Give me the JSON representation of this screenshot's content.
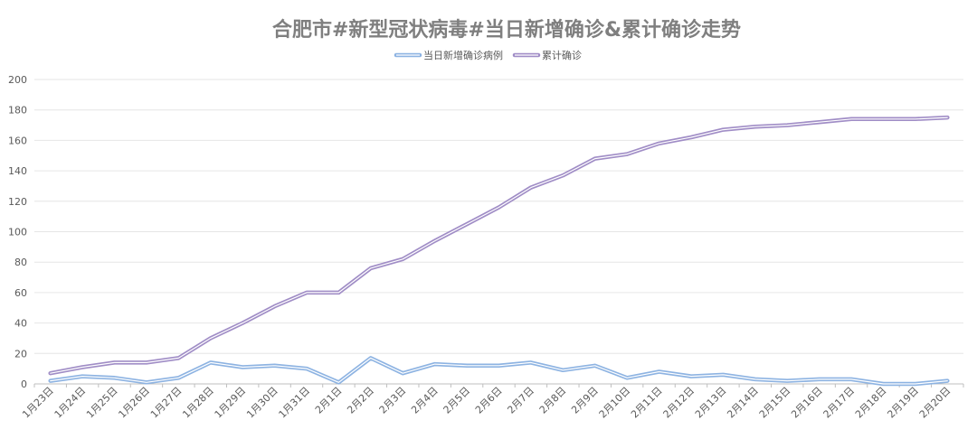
{
  "chart_data": {
    "type": "line",
    "title": "合肥市#新型冠状病毒#当日新增确诊&累计确诊走势",
    "xlabel": "",
    "ylabel": "",
    "ylim": [
      0,
      200
    ],
    "yticks": [
      0,
      20,
      40,
      60,
      80,
      100,
      120,
      140,
      160,
      180,
      200
    ],
    "ytick_labels": [
      "0",
      "20",
      "40",
      "60",
      "80",
      "100",
      "120",
      "140",
      "160",
      "180",
      "200"
    ],
    "grid": true,
    "legend_position": "top-center",
    "categories": [
      "1月23日",
      "1月24日",
      "1月25日",
      "1月26日",
      "1月27日",
      "1月28日",
      "1月29日",
      "1月30日",
      "1月31日",
      "2月1日",
      "2月2日",
      "2月3日",
      "2月4日",
      "2月5日",
      "2月6日",
      "2月7日",
      "2月8日",
      "2月9日",
      "2月10日",
      "2月11日",
      "2月12日",
      "2月13日",
      "2月14日",
      "2月15日",
      "2月16日",
      "2月17日",
      "2月18日",
      "2月19日",
      "2月20日"
    ],
    "series": [
      {
        "name": "当日新增确诊病例",
        "color": "#8db3e2",
        "values": [
          2,
          5,
          4,
          1,
          4,
          14,
          11,
          12,
          10,
          1,
          17,
          7,
          13,
          12,
          12,
          14,
          9,
          12,
          4,
          8,
          5,
          6,
          3,
          2,
          3,
          3,
          0,
          0,
          2
        ]
      },
      {
        "name": "累计确诊",
        "color": "#a08dc6",
        "values": [
          7,
          11,
          14,
          14,
          17,
          30,
          40,
          51,
          60,
          60,
          76,
          82,
          94,
          105,
          116,
          129,
          137,
          148,
          151,
          158,
          162,
          167,
          169,
          170,
          172,
          174,
          174,
          174,
          175
        ]
      }
    ]
  }
}
